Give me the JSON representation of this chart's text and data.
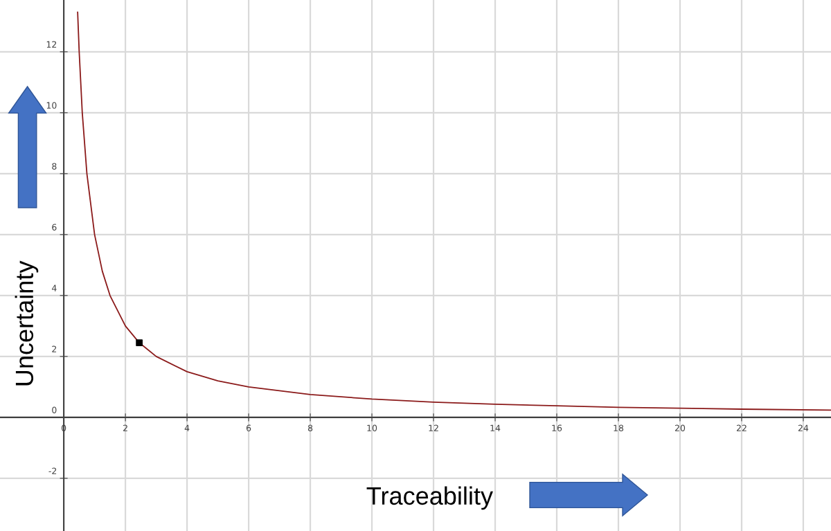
{
  "chart_data": {
    "type": "line",
    "xlabel": "Traceability",
    "ylabel": "Uncertainty",
    "xlim": [
      -2.07,
      24.9
    ],
    "ylim": [
      -3.73,
      13.7
    ],
    "xticks": [
      0,
      2,
      4,
      6,
      8,
      10,
      12,
      14,
      16,
      18,
      20,
      22,
      24
    ],
    "yticks": [
      -2,
      0,
      2,
      4,
      6,
      8,
      10,
      12
    ],
    "grid": true,
    "series": [
      {
        "color": "#8b1a1a",
        "x": [
          0.45,
          0.5,
          0.6,
          0.75,
          1,
          1.25,
          1.5,
          2,
          2.45,
          3,
          4,
          5,
          6,
          8,
          10,
          12,
          14,
          16,
          18,
          20,
          22,
          24.9
        ],
        "values": [
          13.3,
          12,
          10,
          8,
          6,
          4.8,
          4,
          3,
          2.45,
          2,
          1.5,
          1.2,
          1,
          0.75,
          0.6,
          0.5,
          0.43,
          0.38,
          0.33,
          0.3,
          0.27,
          0.24
        ]
      },
      {
        "type": "scatter",
        "color": "#000000",
        "marker": "square",
        "x": [
          2.45
        ],
        "values": [
          2.45
        ]
      }
    ]
  }
}
